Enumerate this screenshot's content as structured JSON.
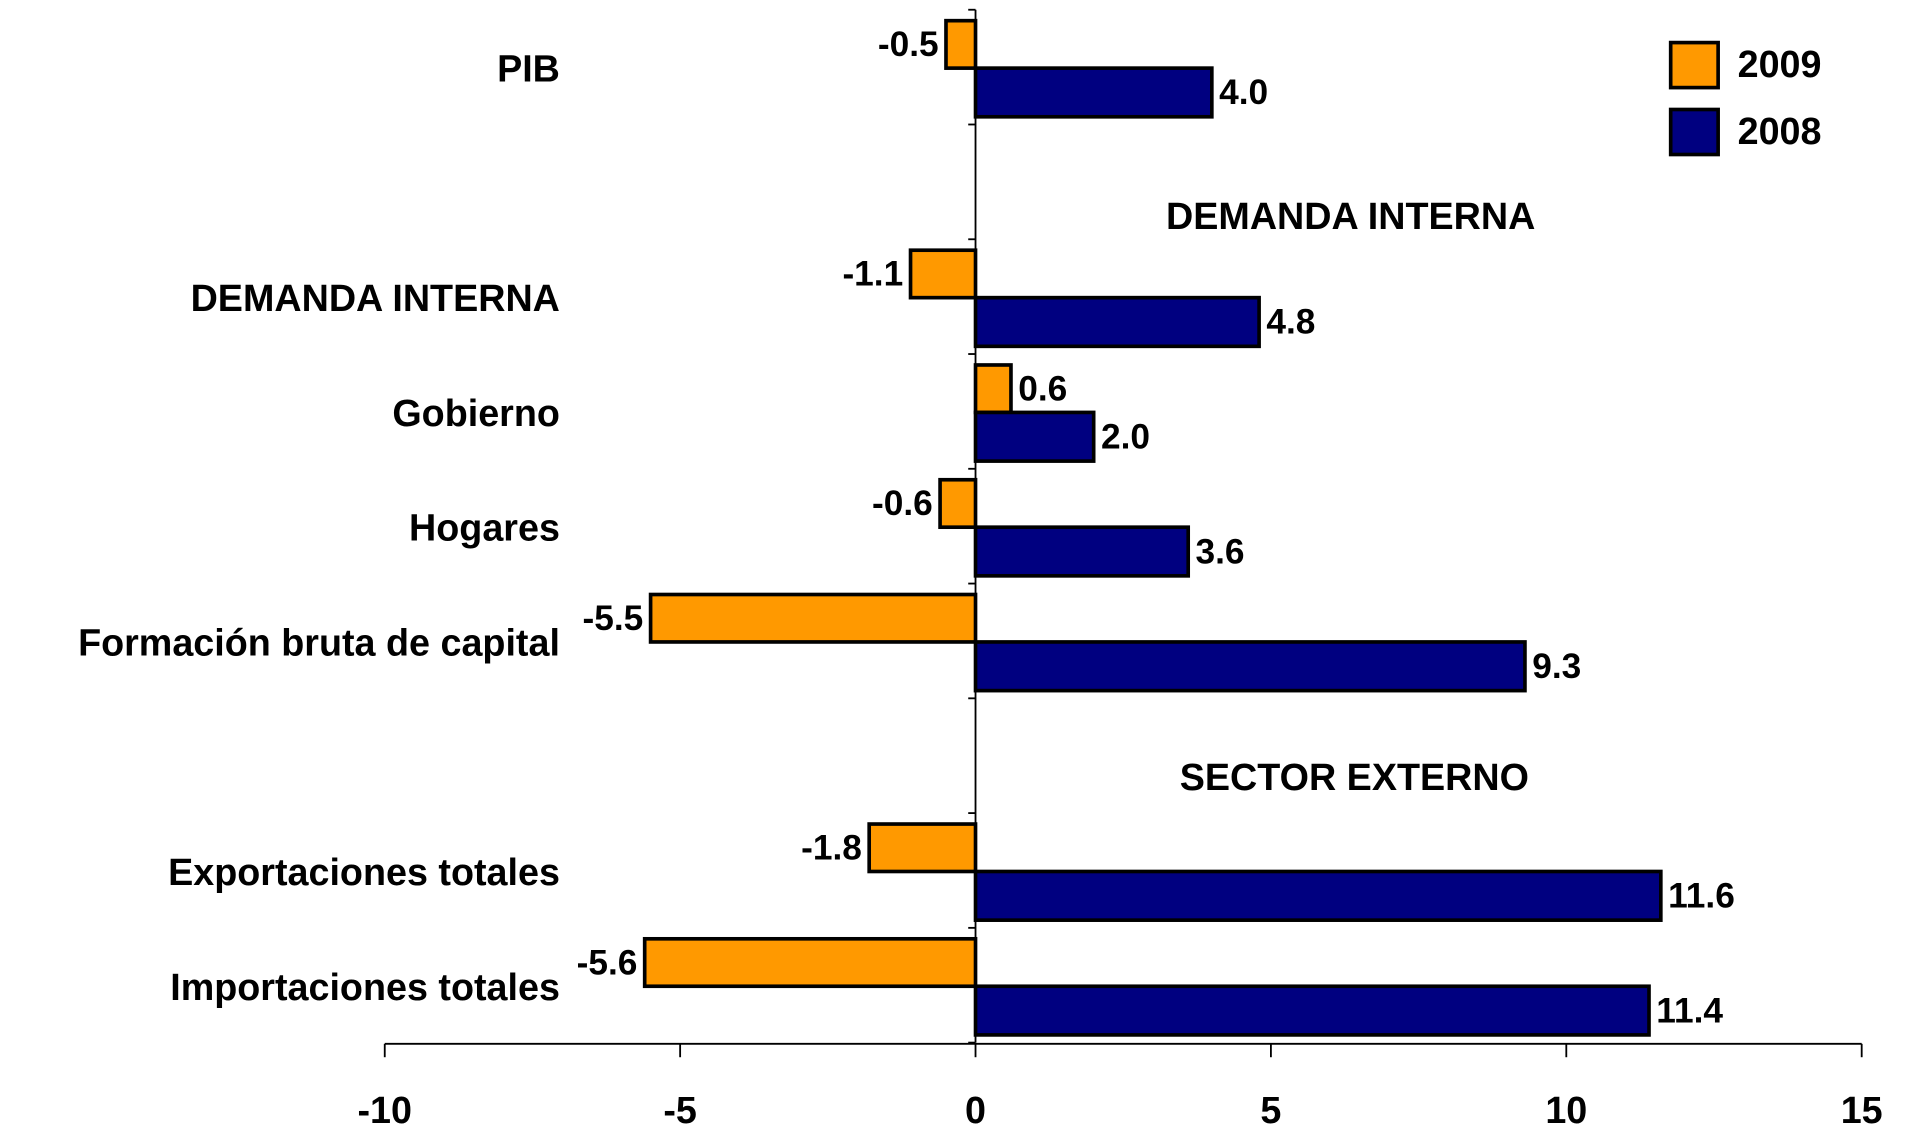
{
  "chart_data": {
    "type": "hbar",
    "categories": [
      "PIB",
      null,
      "DEMANDA INTERNA",
      "Gobierno",
      "Hogares",
      "Formación bruta de capital",
      null,
      "Exportaciones totales",
      "Importaciones totales"
    ],
    "series": [
      {
        "name": "2009",
        "color": "#ff9900",
        "values": [
          -0.5,
          null,
          -1.1,
          0.6,
          -0.6,
          -5.5,
          null,
          -1.8,
          -5.6
        ],
        "value_labels": [
          "-0.5",
          null,
          "-1.1",
          "0.6",
          "-0.6",
          "-5.5",
          null,
          "-1.8",
          "-5.6"
        ]
      },
      {
        "name": "2008",
        "color": "#000080",
        "values": [
          4.0,
          null,
          4.8,
          2.0,
          3.6,
          9.3,
          null,
          11.6,
          11.4
        ],
        "value_labels": [
          "4.0",
          null,
          "4.8",
          "2.0",
          "3.6",
          "9.3",
          null,
          "11.6",
          "11.4"
        ]
      }
    ],
    "annotations": [
      "DEMANDA INTERNA",
      "SECTOR EXTERNO"
    ],
    "xlim": [
      -10,
      15
    ],
    "xticks": [
      -10,
      -5,
      0,
      5,
      10,
      15
    ],
    "legend": "top-right"
  }
}
